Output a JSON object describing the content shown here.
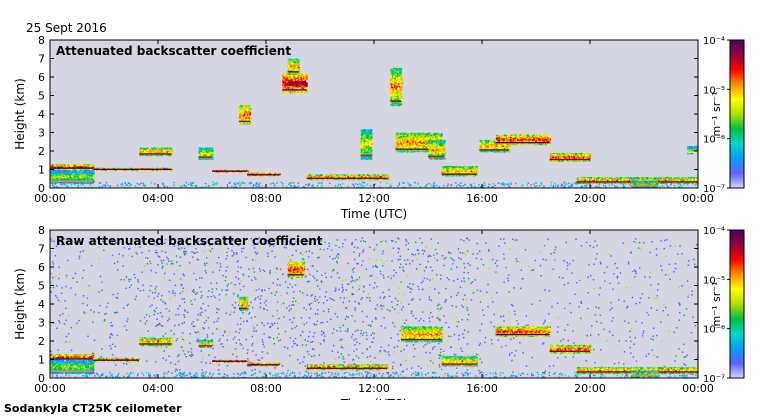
{
  "date": "25 Sept 2016",
  "footer": "Sodankyla CT25K ceilometer",
  "colors": {
    "background_no_signal": "#d6d6e2",
    "scale": [
      "#d4d4ff",
      "#6060ff",
      "#00a0ff",
      "#00d8c8",
      "#00c040",
      "#b0e000",
      "#ffff00",
      "#ff9000",
      "#ff0000",
      "#900040",
      "#500060"
    ]
  },
  "chart_data": [
    {
      "type": "heatmap",
      "title": "Attenuated backscatter coefficient",
      "xlabel": "Time (UTC)",
      "ylabel": "Height (km)",
      "xlim": [
        0,
        24
      ],
      "ylim": [
        0,
        8
      ],
      "x_ticks": [
        "00:00",
        "04:00",
        "08:00",
        "12:00",
        "16:00",
        "20:00",
        "00:00"
      ],
      "y_ticks": [
        "0",
        "1",
        "2",
        "3",
        "4",
        "5",
        "6",
        "7",
        "8"
      ],
      "colorbar": {
        "units": "m⁻¹ sr⁻¹",
        "scale": "log",
        "range": [
          1e-07,
          0.0001
        ],
        "ticks": [
          "10⁻⁷",
          "10⁻⁶",
          "10⁻⁵",
          "10⁻⁴"
        ]
      },
      "noise_density": 0,
      "layers": [
        {
          "t0": 0.0,
          "t1": 1.6,
          "h0": 1.05,
          "h1": 1.3,
          "level": 0.82
        },
        {
          "t0": 0.0,
          "t1": 1.6,
          "h0": 0.3,
          "h1": 1.0,
          "level": 0.5
        },
        {
          "t0": 1.6,
          "t1": 3.3,
          "h0": 1.0,
          "h1": 1.1,
          "level": 0.8
        },
        {
          "t0": 3.3,
          "t1": 4.5,
          "h0": 1.8,
          "h1": 2.2,
          "level": 0.72
        },
        {
          "t0": 3.3,
          "t1": 4.5,
          "h0": 1.0,
          "h1": 1.1,
          "level": 0.8
        },
        {
          "t0": 5.5,
          "t1": 6.0,
          "h0": 1.6,
          "h1": 2.2,
          "level": 0.6
        },
        {
          "t0": 6.0,
          "t1": 7.3,
          "h0": 0.9,
          "h1": 1.0,
          "level": 0.85
        },
        {
          "t0": 7.0,
          "t1": 7.4,
          "h0": 3.5,
          "h1": 4.5,
          "level": 0.78
        },
        {
          "t0": 7.3,
          "t1": 8.5,
          "h0": 0.7,
          "h1": 0.85,
          "level": 0.85
        },
        {
          "t0": 8.6,
          "t1": 9.5,
          "h0": 5.2,
          "h1": 6.2,
          "level": 0.9
        },
        {
          "t0": 8.8,
          "t1": 9.2,
          "h0": 6.2,
          "h1": 7.0,
          "level": 0.7
        },
        {
          "t0": 9.5,
          "t1": 12.5,
          "h0": 0.5,
          "h1": 0.75,
          "level": 0.75
        },
        {
          "t0": 11.5,
          "t1": 11.9,
          "h0": 1.6,
          "h1": 3.2,
          "level": 0.6
        },
        {
          "t0": 12.6,
          "t1": 13.0,
          "h0": 4.5,
          "h1": 6.5,
          "level": 0.7
        },
        {
          "t0": 12.8,
          "t1": 14.5,
          "h0": 2.0,
          "h1": 3.0,
          "level": 0.72
        },
        {
          "t0": 14.0,
          "t1": 14.6,
          "h0": 1.6,
          "h1": 2.6,
          "level": 0.65
        },
        {
          "t0": 14.5,
          "t1": 15.8,
          "h0": 0.7,
          "h1": 1.2,
          "level": 0.7
        },
        {
          "t0": 15.9,
          "t1": 17.0,
          "h0": 2.0,
          "h1": 2.6,
          "level": 0.7
        },
        {
          "t0": 16.5,
          "t1": 18.5,
          "h0": 2.4,
          "h1": 2.9,
          "level": 0.82
        },
        {
          "t0": 18.5,
          "t1": 20.0,
          "h0": 1.5,
          "h1": 1.9,
          "level": 0.78
        },
        {
          "t0": 19.5,
          "t1": 24.0,
          "h0": 0.3,
          "h1": 0.6,
          "level": 0.72
        },
        {
          "t0": 21.5,
          "t1": 22.5,
          "h0": 0.1,
          "h1": 0.4,
          "level": 0.5
        },
        {
          "t0": 23.6,
          "t1": 24.0,
          "h0": 1.9,
          "h1": 2.3,
          "level": 0.45
        }
      ]
    },
    {
      "type": "heatmap",
      "title": "Raw attenuated backscatter coefficient",
      "xlabel": "Time (UTC)",
      "ylabel": "Height (km)",
      "xlim": [
        0,
        24
      ],
      "ylim": [
        0,
        8
      ],
      "x_ticks": [
        "00:00",
        "04:00",
        "08:00",
        "12:00",
        "16:00",
        "20:00",
        "00:00"
      ],
      "y_ticks": [
        "0",
        "1",
        "2",
        "3",
        "4",
        "5",
        "6",
        "7",
        "8"
      ],
      "colorbar": {
        "units": "m⁻¹ sr⁻¹",
        "scale": "log",
        "range": [
          1e-07,
          0.0001
        ],
        "ticks": [
          "10⁻⁷",
          "10⁻⁶",
          "10⁻⁵",
          "10⁻⁴"
        ]
      },
      "noise_density": 1,
      "layers": [
        {
          "t0": 0.0,
          "t1": 1.6,
          "h0": 1.0,
          "h1": 1.3,
          "level": 0.82
        },
        {
          "t0": 0.0,
          "t1": 1.6,
          "h0": 0.3,
          "h1": 1.0,
          "level": 0.5
        },
        {
          "t0": 1.6,
          "t1": 3.3,
          "h0": 0.95,
          "h1": 1.1,
          "level": 0.8
        },
        {
          "t0": 3.3,
          "t1": 4.5,
          "h0": 1.8,
          "h1": 2.2,
          "level": 0.72
        },
        {
          "t0": 5.5,
          "t1": 6.0,
          "h0": 1.7,
          "h1": 2.1,
          "level": 0.6
        },
        {
          "t0": 6.0,
          "t1": 7.3,
          "h0": 0.9,
          "h1": 1.0,
          "level": 0.85
        },
        {
          "t0": 7.0,
          "t1": 7.3,
          "h0": 3.7,
          "h1": 4.4,
          "level": 0.7
        },
        {
          "t0": 7.3,
          "t1": 8.5,
          "h0": 0.7,
          "h1": 0.85,
          "level": 0.85
        },
        {
          "t0": 8.8,
          "t1": 9.4,
          "h0": 5.5,
          "h1": 6.3,
          "level": 0.82
        },
        {
          "t0": 9.5,
          "t1": 12.5,
          "h0": 0.5,
          "h1": 0.75,
          "level": 0.75
        },
        {
          "t0": 13.0,
          "t1": 14.5,
          "h0": 2.0,
          "h1": 2.8,
          "level": 0.72
        },
        {
          "t0": 14.5,
          "t1": 15.8,
          "h0": 0.7,
          "h1": 1.2,
          "level": 0.65
        },
        {
          "t0": 16.5,
          "t1": 18.5,
          "h0": 2.3,
          "h1": 2.8,
          "level": 0.82
        },
        {
          "t0": 18.5,
          "t1": 20.0,
          "h0": 1.4,
          "h1": 1.8,
          "level": 0.78
        },
        {
          "t0": 19.5,
          "t1": 24.0,
          "h0": 0.3,
          "h1": 0.6,
          "level": 0.72
        },
        {
          "t0": 21.5,
          "t1": 22.5,
          "h0": 0.1,
          "h1": 0.4,
          "level": 0.5
        }
      ]
    }
  ]
}
